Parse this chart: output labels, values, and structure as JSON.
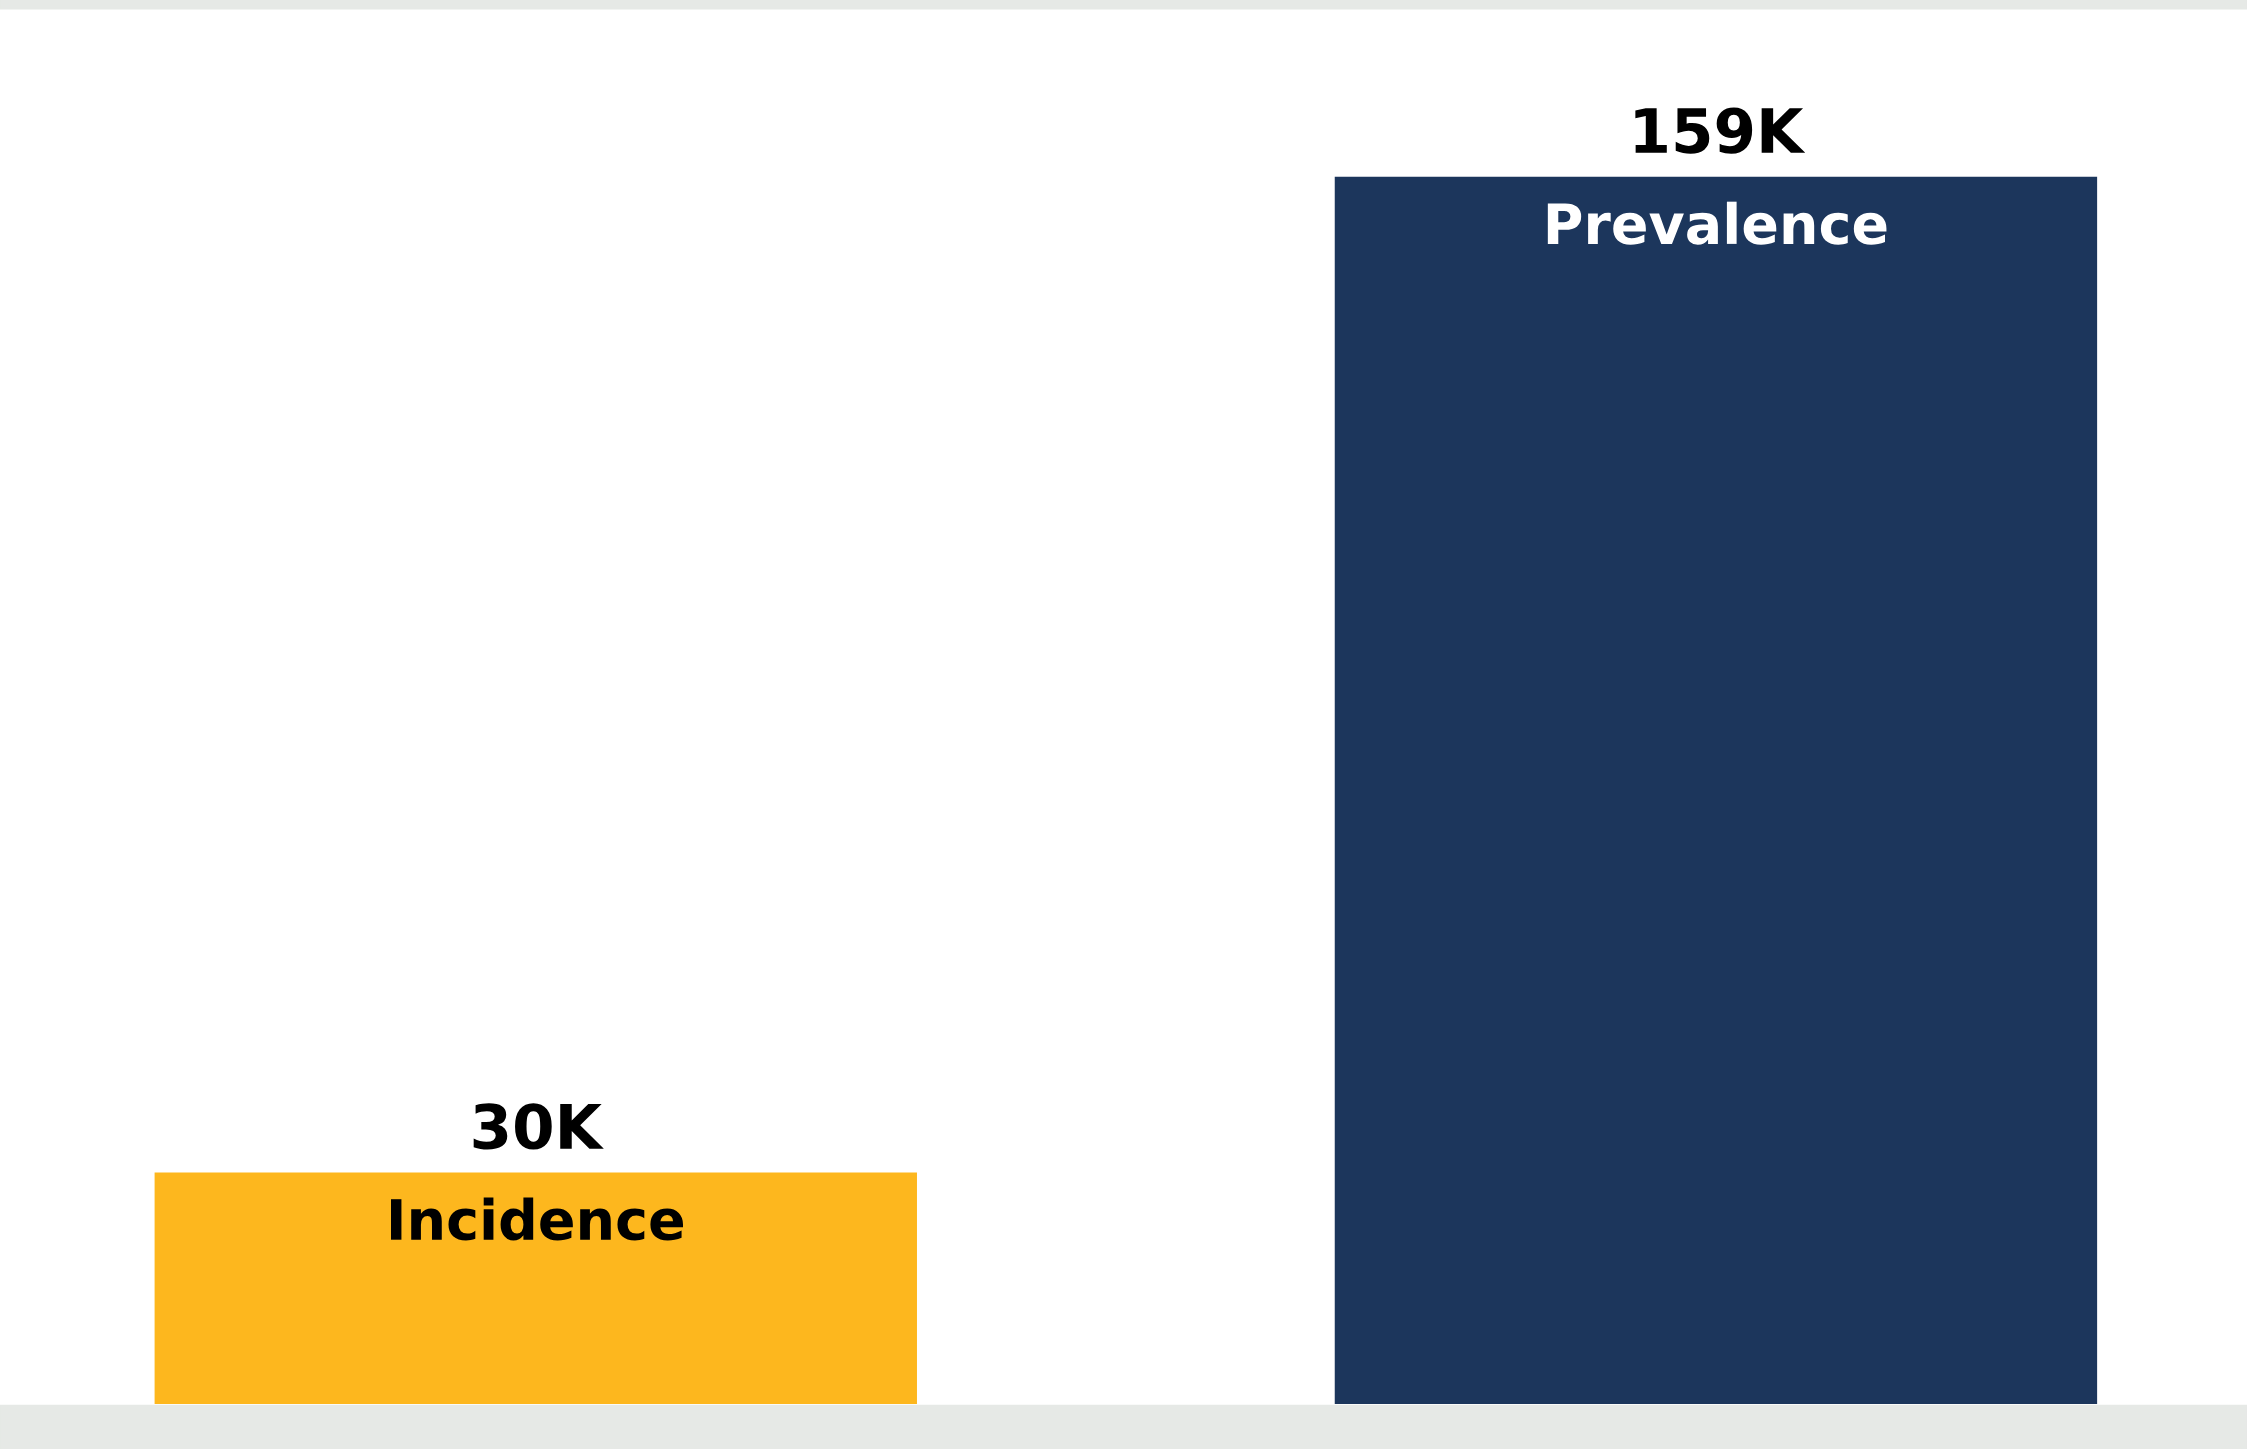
{
  "chart_data": {
    "type": "bar",
    "categories": [
      "Incidence",
      "Prevalence"
    ],
    "values": [
      30000,
      159000
    ],
    "colors": [
      "#fdb71e",
      "#1c365c"
    ],
    "value_labels": [
      "30K",
      "159K"
    ],
    "legend": false
  }
}
